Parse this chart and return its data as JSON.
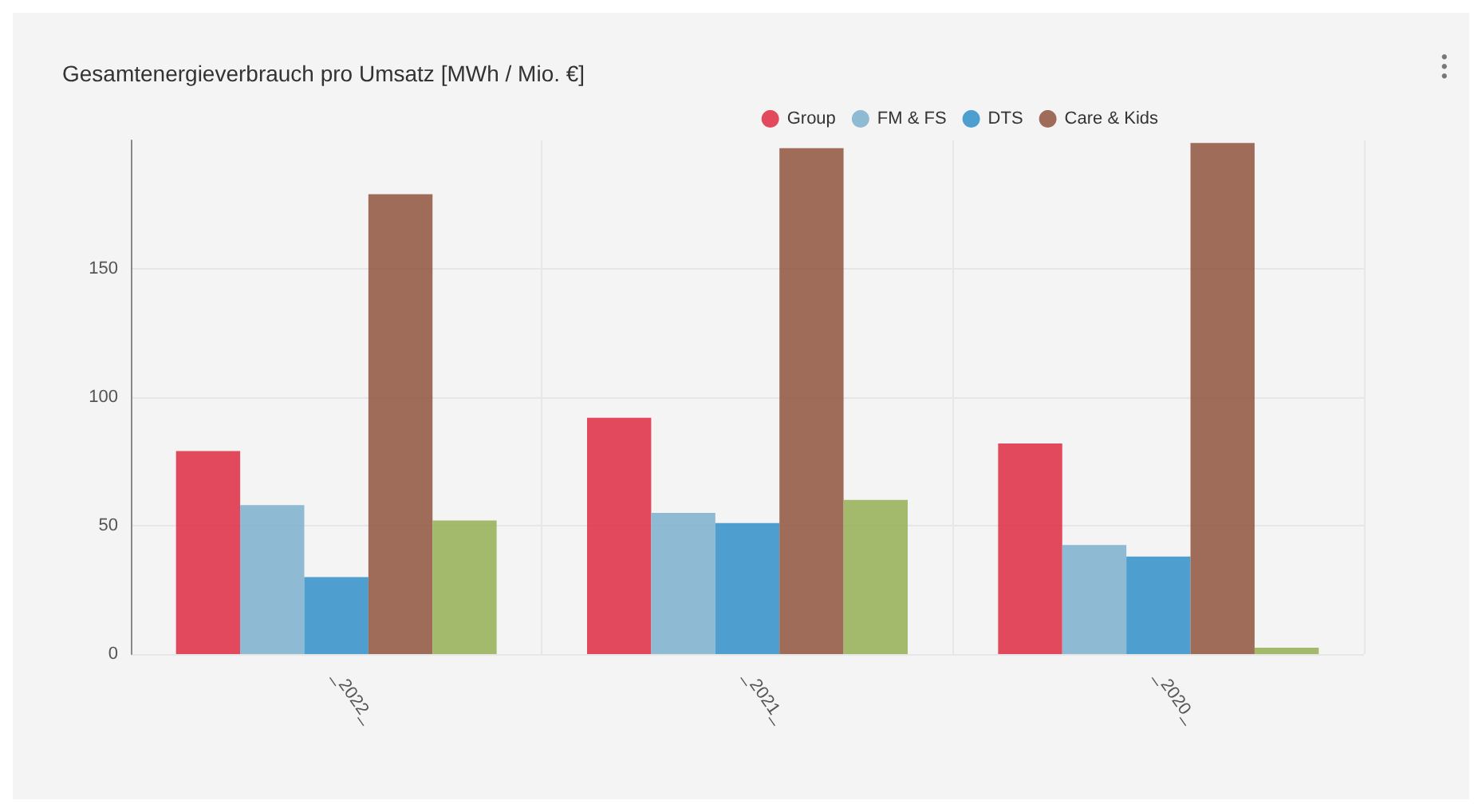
{
  "chart_data": {
    "type": "bar",
    "title": "Gesamtenergieverbrauch pro Umsatz [MWh / Mio. €]",
    "categories": [
      "_2022_",
      "_2021_",
      "_2020_"
    ],
    "series": [
      {
        "name": "Group",
        "color": "#e03a4e",
        "values": [
          79,
          92,
          82
        ]
      },
      {
        "name": "FM & FS",
        "color": "#84b4cf",
        "values": [
          58,
          55,
          42.5
        ]
      },
      {
        "name": "DTS",
        "color": "#3f96cc",
        "values": [
          30,
          51,
          38
        ]
      },
      {
        "name": "Care & Kids",
        "color": "#98604c",
        "values": [
          179,
          197,
          199
        ]
      },
      {
        "color": "#9bb460",
        "values": [
          52,
          60,
          2.5
        ]
      }
    ],
    "ylim": [
      0,
      200
    ],
    "yticks": [
      0,
      50,
      100,
      150
    ],
    "grid": true,
    "legend": "top right"
  }
}
